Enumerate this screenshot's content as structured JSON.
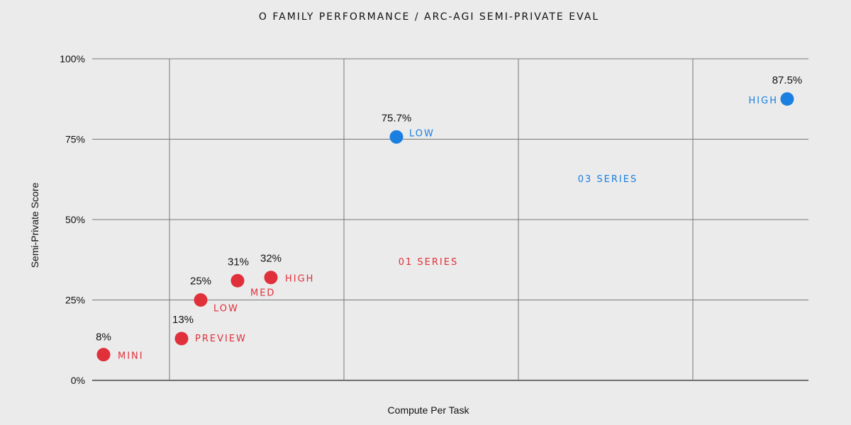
{
  "chart_data": {
    "type": "scatter",
    "title": "O FAMILY PERFORMANCE / ARC-AGI SEMI-PRIVATE EVAL",
    "xlabel": "Compute Per Task",
    "ylabel": "Semi-Private Score",
    "ylim": [
      0,
      100
    ],
    "y_ticks": [
      "0%",
      "25%",
      "50%",
      "75%",
      "100%"
    ],
    "grid": true,
    "series": [
      {
        "name": "01 SERIES",
        "color": "#e0303a",
        "points": [
          {
            "label": "MINI",
            "value_label": "8%",
            "y": 8
          },
          {
            "label": "PREVIEW",
            "value_label": "13%",
            "y": 13
          },
          {
            "label": "LOW",
            "value_label": "25%",
            "y": 25
          },
          {
            "label": "MED",
            "value_label": "31%",
            "y": 31
          },
          {
            "label": "HIGH",
            "value_label": "32%",
            "y": 32
          }
        ]
      },
      {
        "name": "03 SERIES",
        "color": "#1a7fe0",
        "points": [
          {
            "label": "LOW",
            "value_label": "75.7%",
            "y": 75.7
          },
          {
            "label": "HIGH",
            "value_label": "87.5%",
            "y": 87.5
          }
        ]
      }
    ]
  }
}
